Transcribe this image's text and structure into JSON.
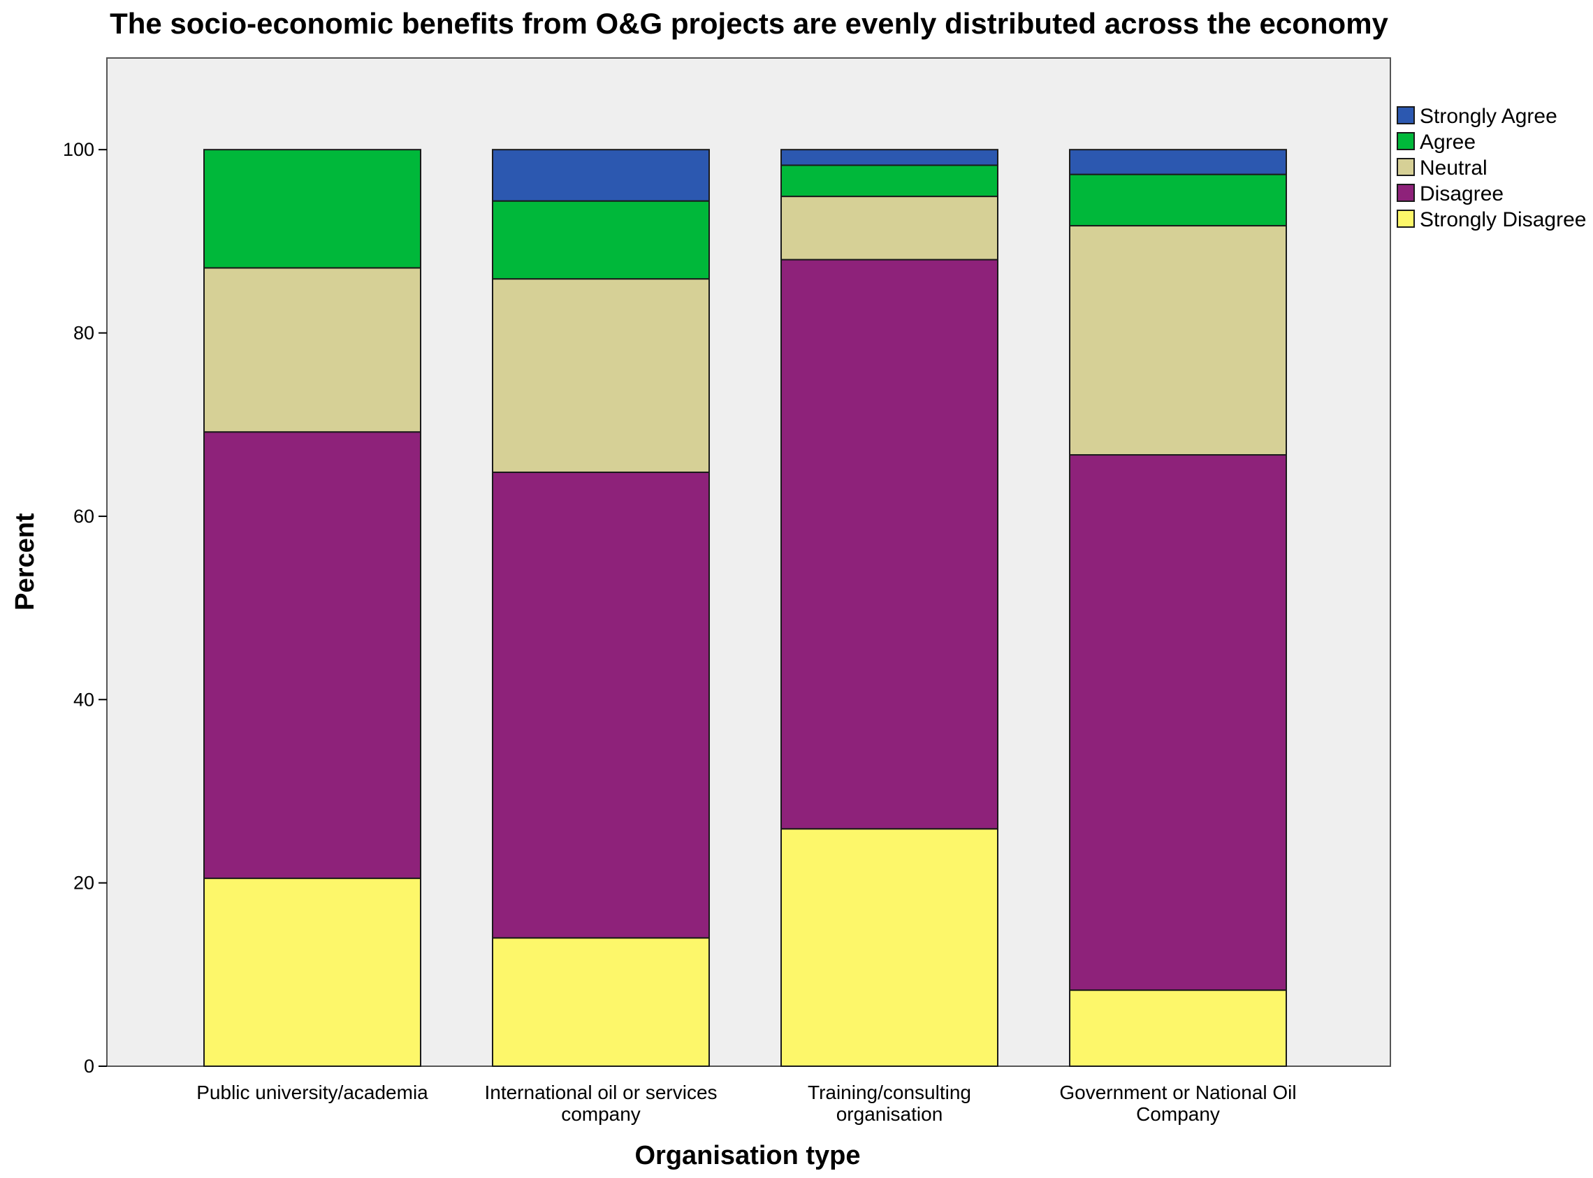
{
  "chart_data": {
    "type": "bar",
    "stacked": true,
    "title": "The socio-economic benefits from O&G projects are evenly distributed across the economy",
    "xlabel": "Organisation type",
    "ylabel": "Percent",
    "ylim": [
      0,
      110
    ],
    "yticks": [
      0,
      20,
      40,
      60,
      80,
      100
    ],
    "categories": [
      [
        "Public university/academia"
      ],
      [
        "International oil or services",
        "company"
      ],
      [
        "Training/consulting",
        "organisation"
      ],
      [
        "Government or National Oil",
        "Company"
      ]
    ],
    "series": [
      {
        "name": "Strongly Disagree",
        "color": "#FDF76A",
        "values": [
          20.5,
          14.0,
          25.9,
          8.3
        ]
      },
      {
        "name": "Disagree",
        "color": "#8E227A",
        "values": [
          48.7,
          50.8,
          62.1,
          58.4
        ]
      },
      {
        "name": "Neutral",
        "color": "#D6D096",
        "values": [
          17.9,
          21.1,
          6.9,
          25.0
        ]
      },
      {
        "name": "Agree",
        "color": "#00B83A",
        "values": [
          12.9,
          8.5,
          3.4,
          5.6
        ]
      },
      {
        "name": "Strongly Agree",
        "color": "#2C58B0",
        "values": [
          0.0,
          5.6,
          1.7,
          2.7
        ]
      }
    ],
    "legend_order": [
      "Strongly Agree",
      "Agree",
      "Neutral",
      "Disagree",
      "Strongly Disagree"
    ],
    "legend_position": "right",
    "plot_background": "#EFEFEF",
    "grid": false
  }
}
